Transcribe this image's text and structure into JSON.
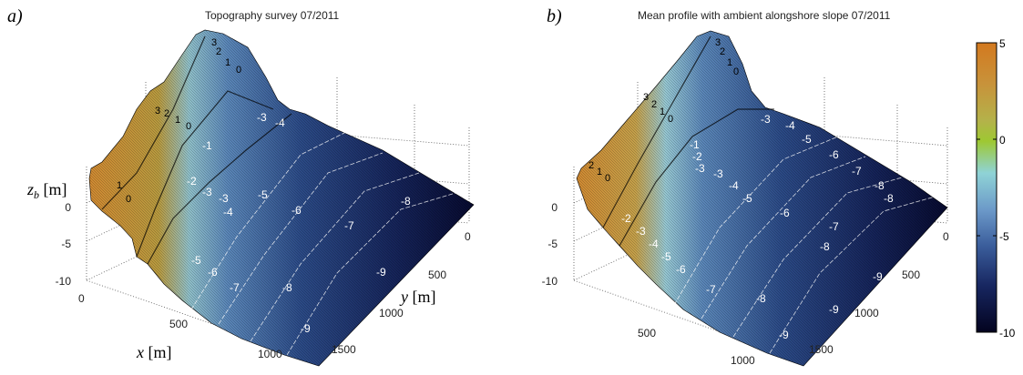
{
  "chart_data": [
    {
      "type": "surface",
      "panel_label": "a)",
      "title": "Topography survey  07/2011",
      "x_label": "x [m]",
      "y_label": "y [m]",
      "z_label": "z_b [m]",
      "x_ticks": [
        0,
        500,
        1000
      ],
      "y_ticks": [
        0,
        500,
        1000,
        1500
      ],
      "z_ticks": [
        0,
        -5,
        -10
      ],
      "z_range": [
        -10,
        5
      ],
      "contour_labels": [
        "-1",
        "-2",
        "-3",
        "-3",
        "-4",
        "-5",
        "-6",
        "-7",
        "-8",
        "-5",
        "-6",
        "-7",
        "-8",
        "-9",
        "-9",
        "-3",
        "-4"
      ],
      "dune_labels": [
        "3",
        "2",
        "1",
        "0",
        "3",
        "2",
        "1",
        "0",
        "1",
        "0"
      ]
    },
    {
      "type": "surface",
      "panel_label": "b)",
      "title": "Mean profile with ambient alongshore slope 07/2011",
      "x_label": "",
      "y_label": "",
      "z_label": "",
      "x_ticks": [
        500,
        1000
      ],
      "y_ticks": [
        0,
        500,
        1000,
        1500
      ],
      "z_ticks": [
        0,
        -5,
        -10
      ],
      "z_range": [
        -10,
        5
      ],
      "contour_labels": [
        "-1",
        "-2",
        "-3",
        "-3",
        "-4",
        "-5",
        "-6",
        "-7",
        "-8",
        "-9",
        "-2",
        "-3",
        "-4",
        "-5",
        "-6",
        "-7",
        "-8",
        "-8",
        "-9",
        "-9",
        "-3",
        "-4",
        "-5",
        "-6",
        "-7",
        "-8"
      ],
      "dune_labels": [
        "3",
        "2",
        "1",
        "0",
        "3",
        "2",
        "1",
        "0",
        "2",
        "1",
        "0"
      ]
    }
  ],
  "colorbar": {
    "min": -10,
    "max": 5,
    "ticks": [
      5,
      0,
      -5,
      -10
    ],
    "colors": [
      "#d3791f",
      "#c8a23a",
      "#aacb3a",
      "#8ed0d0",
      "#5f87bf",
      "#2d4b87",
      "#101a4e",
      "#02021e"
    ]
  }
}
